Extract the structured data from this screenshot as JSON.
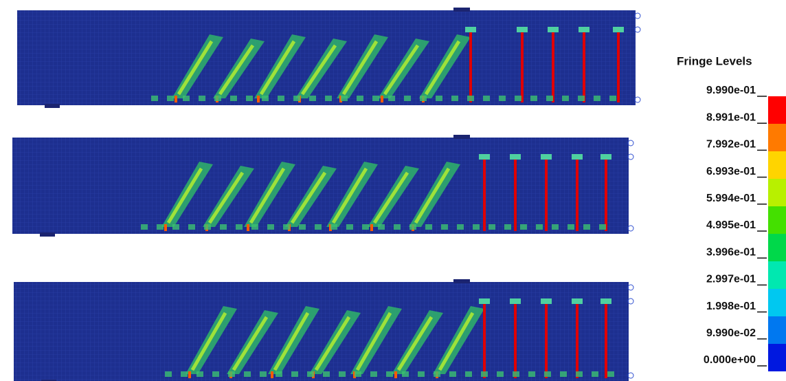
{
  "fringe": {
    "title": "Fringe Levels",
    "levels": [
      "9.990e-01",
      "8.991e-01",
      "7.992e-01",
      "6.993e-01",
      "5.994e-01",
      "4.995e-01",
      "3.996e-01",
      "2.997e-01",
      "1.998e-01",
      "9.990e-02",
      "0.000e+00"
    ]
  }
}
